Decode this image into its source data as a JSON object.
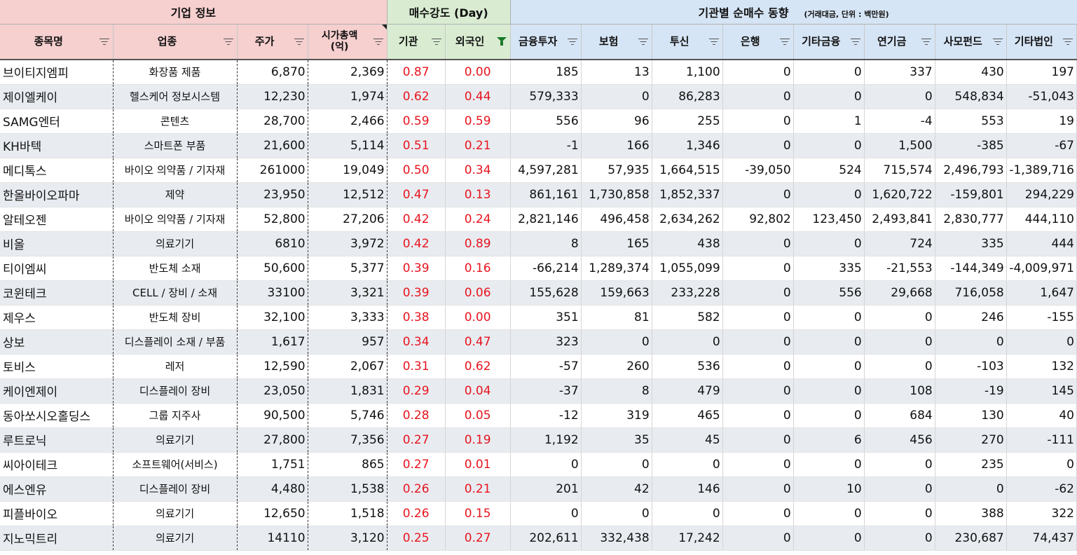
{
  "groups": {
    "company": "기업 정보",
    "strength": "매수강도 (Day)",
    "institution": "기관별 순매수 동향",
    "institution_note": "(거래대금, 단위 : 백만원)"
  },
  "columns": {
    "name": "종목명",
    "industry": "업종",
    "price": "주가",
    "cap_line1": "시가총액",
    "cap_line2": "(억)",
    "inst": "기관",
    "foreign": "외국인",
    "fin": "금융투자",
    "ins": "보험",
    "trust": "투신",
    "bank": "은행",
    "otherfin": "기타금융",
    "pension": "연기금",
    "private": "사모펀드",
    "othercorp": "기타법인"
  },
  "rows": [
    {
      "name": "브이티지엠피",
      "industry": "화장품 제품",
      "price": "6,870",
      "cap": "2,369",
      "inst": "0.87",
      "foreign": "0.00",
      "fin": "185",
      "ins": "13",
      "trust": "1,100",
      "bank": "0",
      "otherfin": "0",
      "pension": "337",
      "private": "430",
      "othercorp": "197"
    },
    {
      "name": "제이엘케이",
      "industry": "헬스케어 정보시스템",
      "price": "12,230",
      "cap": "1,974",
      "inst": "0.62",
      "foreign": "0.44",
      "fin": "579,333",
      "ins": "0",
      "trust": "86,283",
      "bank": "0",
      "otherfin": "0",
      "pension": "0",
      "private": "548,834",
      "othercorp": "-51,043"
    },
    {
      "name": "SAMG엔터",
      "industry": "콘텐츠",
      "price": "28,700",
      "cap": "2,466",
      "inst": "0.59",
      "foreign": "0.59",
      "fin": "556",
      "ins": "96",
      "trust": "255",
      "bank": "0",
      "otherfin": "1",
      "pension": "-4",
      "private": "553",
      "othercorp": "19"
    },
    {
      "name": "KH바텍",
      "industry": "스마트폰 부품",
      "price": "21,600",
      "cap": "5,114",
      "inst": "0.51",
      "foreign": "0.21",
      "fin": "-1",
      "ins": "166",
      "trust": "1,346",
      "bank": "0",
      "otherfin": "0",
      "pension": "1,500",
      "private": "-385",
      "othercorp": "-67"
    },
    {
      "name": "메디톡스",
      "industry": "바이오 의약품 / 기자재",
      "price": "261000",
      "cap": "19,049",
      "inst": "0.50",
      "foreign": "0.34",
      "fin": "4,597,281",
      "ins": "57,935",
      "trust": "1,664,515",
      "bank": "-39,050",
      "otherfin": "524",
      "pension": "715,574",
      "private": "2,496,793",
      "othercorp": "-1,389,716"
    },
    {
      "name": "한올바이오파마",
      "industry": "제약",
      "price": "23,950",
      "cap": "12,512",
      "inst": "0.47",
      "foreign": "0.13",
      "fin": "861,161",
      "ins": "1,730,858",
      "trust": "1,852,337",
      "bank": "0",
      "otherfin": "0",
      "pension": "1,620,722",
      "private": "-159,801",
      "othercorp": "294,229"
    },
    {
      "name": "알테오젠",
      "industry": "바이오 의약품 / 기자재",
      "price": "52,800",
      "cap": "27,206",
      "inst": "0.42",
      "foreign": "0.24",
      "fin": "2,821,146",
      "ins": "496,458",
      "trust": "2,634,262",
      "bank": "92,802",
      "otherfin": "123,450",
      "pension": "2,493,841",
      "private": "2,830,777",
      "othercorp": "444,110"
    },
    {
      "name": "비올",
      "industry": "의료기기",
      "price": "6810",
      "cap": "3,972",
      "inst": "0.42",
      "foreign": "0.89",
      "fin": "8",
      "ins": "165",
      "trust": "438",
      "bank": "0",
      "otherfin": "0",
      "pension": "724",
      "private": "335",
      "othercorp": "444"
    },
    {
      "name": "티이엠씨",
      "industry": "반도체 소재",
      "price": "50,600",
      "cap": "5,377",
      "inst": "0.39",
      "foreign": "0.16",
      "fin": "-66,214",
      "ins": "1,289,374",
      "trust": "1,055,099",
      "bank": "0",
      "otherfin": "335",
      "pension": "-21,553",
      "private": "-144,349",
      "othercorp": "-4,009,971"
    },
    {
      "name": "코윈테크",
      "industry": "CELL / 장비 / 소재",
      "price": "33100",
      "cap": "3,321",
      "inst": "0.39",
      "foreign": "0.06",
      "fin": "155,628",
      "ins": "159,663",
      "trust": "233,228",
      "bank": "0",
      "otherfin": "556",
      "pension": "29,668",
      "private": "716,058",
      "othercorp": "1,647"
    },
    {
      "name": "제우스",
      "industry": "반도체 장비",
      "price": "32,100",
      "cap": "3,333",
      "inst": "0.38",
      "foreign": "0.00",
      "fin": "351",
      "ins": "81",
      "trust": "582",
      "bank": "0",
      "otherfin": "0",
      "pension": "0",
      "private": "246",
      "othercorp": "-155"
    },
    {
      "name": "상보",
      "industry": "디스플레이 소재 / 부품",
      "price": "1,617",
      "cap": "957",
      "inst": "0.34",
      "foreign": "0.47",
      "fin": "323",
      "ins": "0",
      "trust": "0",
      "bank": "0",
      "otherfin": "0",
      "pension": "0",
      "private": "0",
      "othercorp": "0"
    },
    {
      "name": "토비스",
      "industry": "레저",
      "price": "12,590",
      "cap": "2,067",
      "inst": "0.31",
      "foreign": "0.62",
      "fin": "-57",
      "ins": "260",
      "trust": "536",
      "bank": "0",
      "otherfin": "0",
      "pension": "0",
      "private": "-103",
      "othercorp": "132"
    },
    {
      "name": "케이엔제이",
      "industry": "디스플레이 장비",
      "price": "23,050",
      "cap": "1,831",
      "inst": "0.29",
      "foreign": "0.04",
      "fin": "-37",
      "ins": "8",
      "trust": "479",
      "bank": "0",
      "otherfin": "0",
      "pension": "108",
      "private": "-19",
      "othercorp": "145"
    },
    {
      "name": "동아쏘시오홀딩스",
      "industry": "그룹 지주사",
      "price": "90,500",
      "cap": "5,746",
      "inst": "0.28",
      "foreign": "0.05",
      "fin": "-12",
      "ins": "319",
      "trust": "465",
      "bank": "0",
      "otherfin": "0",
      "pension": "684",
      "private": "130",
      "othercorp": "40"
    },
    {
      "name": "루트로닉",
      "industry": "의료기기",
      "price": "27,800",
      "cap": "7,356",
      "inst": "0.27",
      "foreign": "0.19",
      "fin": "1,192",
      "ins": "35",
      "trust": "45",
      "bank": "0",
      "otherfin": "6",
      "pension": "456",
      "private": "270",
      "othercorp": "-111"
    },
    {
      "name": "씨아이테크",
      "industry": "소프트웨어(서비스)",
      "price": "1,751",
      "cap": "865",
      "inst": "0.27",
      "foreign": "0.01",
      "fin": "0",
      "ins": "0",
      "trust": "0",
      "bank": "0",
      "otherfin": "0",
      "pension": "0",
      "private": "235",
      "othercorp": "0"
    },
    {
      "name": "에스엔유",
      "industry": "디스플레이 장비",
      "price": "4,480",
      "cap": "1,538",
      "inst": "0.26",
      "foreign": "0.21",
      "fin": "201",
      "ins": "42",
      "trust": "146",
      "bank": "0",
      "otherfin": "10",
      "pension": "0",
      "private": "0",
      "othercorp": "-62"
    },
    {
      "name": "피플바이오",
      "industry": "의료기기",
      "price": "12,650",
      "cap": "1,518",
      "inst": "0.26",
      "foreign": "0.15",
      "fin": "0",
      "ins": "0",
      "trust": "0",
      "bank": "0",
      "otherfin": "0",
      "pension": "0",
      "private": "388",
      "othercorp": "322"
    },
    {
      "name": "지노믹트리",
      "industry": "의료기기",
      "price": "14110",
      "cap": "3,120",
      "inst": "0.25",
      "foreign": "0.27",
      "fin": "202,611",
      "ins": "332,438",
      "trust": "17,242",
      "bank": "0",
      "otherfin": "0",
      "pension": "0",
      "private": "230,687",
      "othercorp": "74,437"
    }
  ]
}
